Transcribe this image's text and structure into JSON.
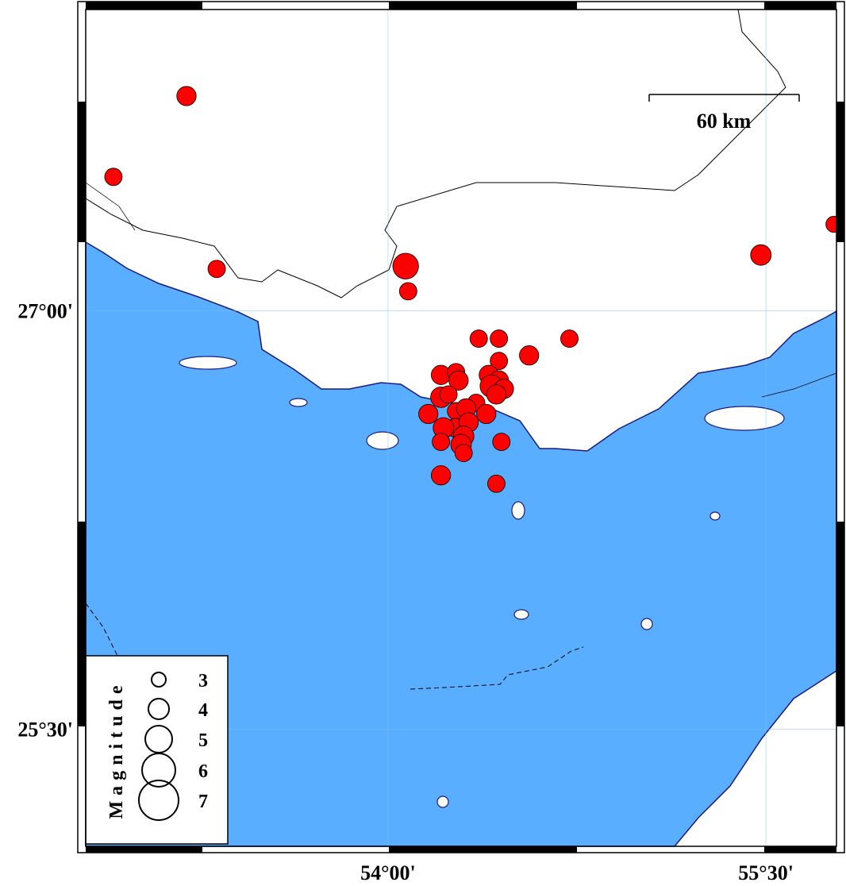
{
  "map": {
    "xlim": [
      52.8,
      55.78
    ],
    "ylim": [
      25.08,
      28.08
    ],
    "xticks": [
      {
        "value": 54,
        "label": "54°00'"
      },
      {
        "value": 55.5,
        "label": "55°30'"
      }
    ],
    "yticks": [
      {
        "value": 27,
        "label": "27°00'"
      },
      {
        "value": 25.5,
        "label": "25°30'"
      }
    ],
    "scale_bar": {
      "label": "60 km"
    },
    "legend": {
      "title": "Magnitude",
      "magnitudes": [
        3,
        4,
        5,
        6,
        7
      ]
    },
    "events": {
      "color": "#ff0000",
      "lon": [
        53.2,
        52.91,
        53.32,
        54.07,
        54.08,
        55.48,
        55.77,
        54.36,
        54.44,
        54.56,
        54.72,
        54.44,
        54.21,
        54.27,
        54.28,
        54.4,
        54.44,
        54.41,
        54.46,
        54.21,
        54.24,
        54.35,
        54.43,
        54.39,
        54.16,
        54.27,
        54.31,
        54.27,
        54.22,
        54.32,
        54.3,
        54.21,
        54.29,
        54.3,
        54.45,
        54.21,
        54.43
      ],
      "lat": [
        27.77,
        27.48,
        27.15,
        27.16,
        27.07,
        27.2,
        27.31,
        26.9,
        26.9,
        26.84,
        26.9,
        26.82,
        26.77,
        26.78,
        26.75,
        26.77,
        26.75,
        26.73,
        26.72,
        26.69,
        26.7,
        26.67,
        26.7,
        26.63,
        26.63,
        26.64,
        26.65,
        26.58,
        26.58,
        26.6,
        26.55,
        26.53,
        26.52,
        26.49,
        26.53,
        26.41,
        26.38
      ],
      "magnitude": [
        3.8,
        3.5,
        3.5,
        4.8,
        3.5,
        4.0,
        3.3,
        3.5,
        3.5,
        3.8,
        3.5,
        3.5,
        3.8,
        3.5,
        3.8,
        3.8,
        3.8,
        4.3,
        3.8,
        4.0,
        3.5,
        3.5,
        3.8,
        3.8,
        3.8,
        3.5,
        3.8,
        3.8,
        4.0,
        3.8,
        4.0,
        3.5,
        4.0,
        3.5,
        3.5,
        3.8,
        3.5
      ]
    }
  }
}
